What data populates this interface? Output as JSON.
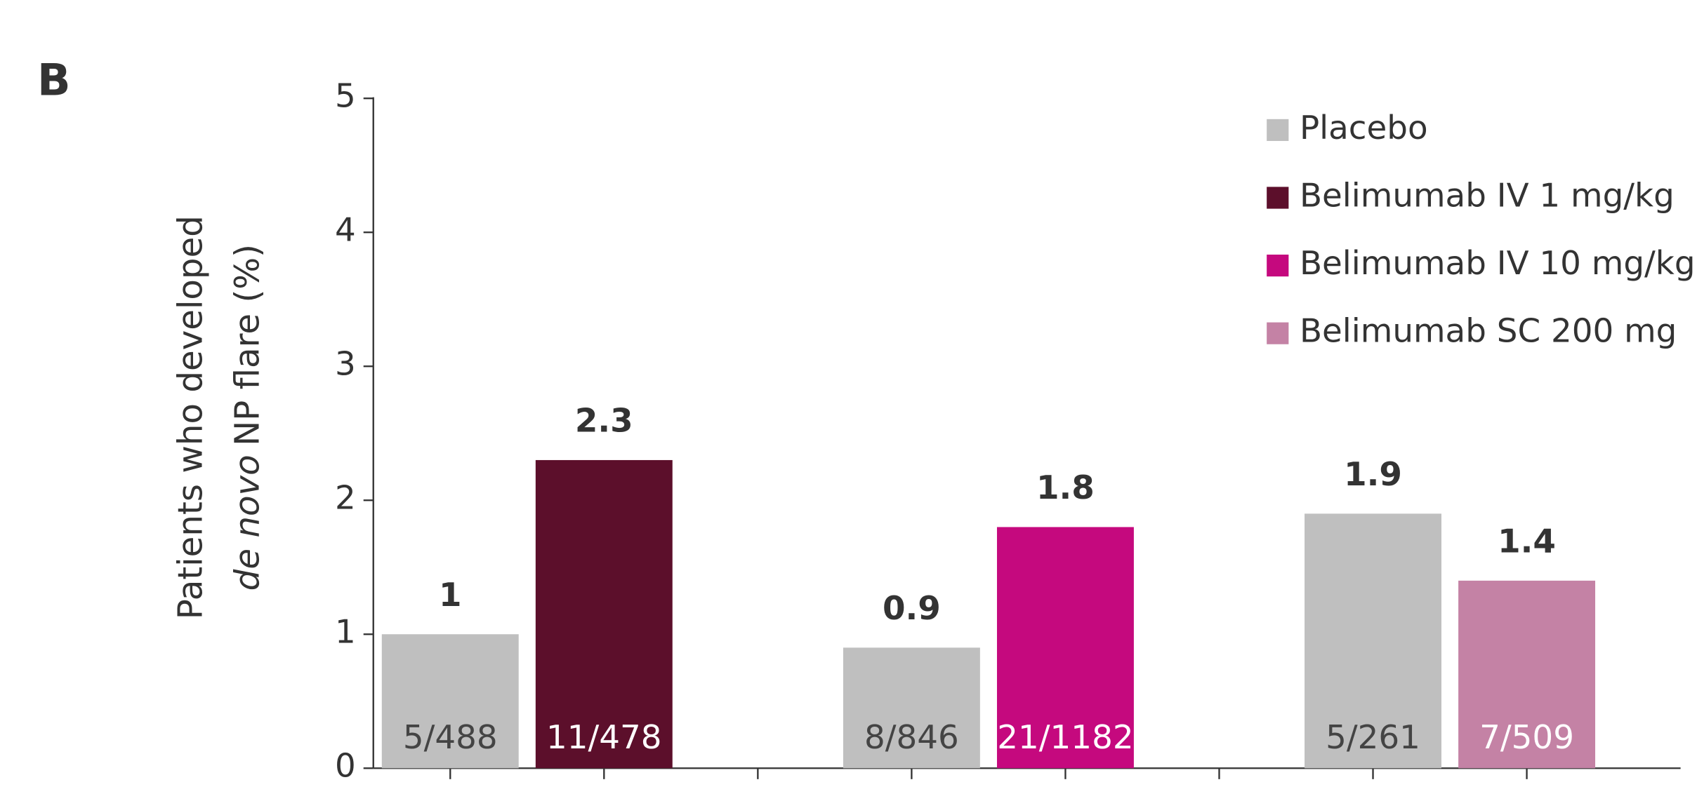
{
  "chart_data": {
    "type": "bar",
    "panel_label": "B",
    "ylabel": {
      "line1": "Patients who developed",
      "line2_italic": "de novo",
      "line2": "NP flare (%)"
    },
    "categories": [
      null,
      null,
      null
    ],
    "series": [
      {
        "name": "Placebo",
        "color": "#bfbfbf",
        "values": [
          1,
          0.9,
          1.9
        ],
        "bar_labels": [
          "5/488",
          "8/846",
          "5/261"
        ]
      },
      {
        "name": "Belimumab IV 1 mg/kg",
        "color": "#5c0f2b",
        "values": [
          2.3,
          null,
          null
        ],
        "bar_labels": [
          "11/478",
          null,
          null
        ]
      },
      {
        "name": "Belimumab IV 10 mg/kg",
        "color": "#c5097e",
        "values": [
          null,
          1.8,
          null
        ],
        "bar_labels": [
          null,
          "21/1182",
          null
        ]
      },
      {
        "name": "Belimumab SC 200 mg",
        "color": "#c482a5",
        "values": [
          null,
          null,
          1.4
        ],
        "bar_labels": [
          null,
          null,
          "7/509"
        ]
      }
    ],
    "ylim": [
      0,
      5
    ],
    "yticks": [
      0,
      1,
      2,
      3,
      4,
      5
    ],
    "grid": false,
    "legend": "top-right"
  }
}
